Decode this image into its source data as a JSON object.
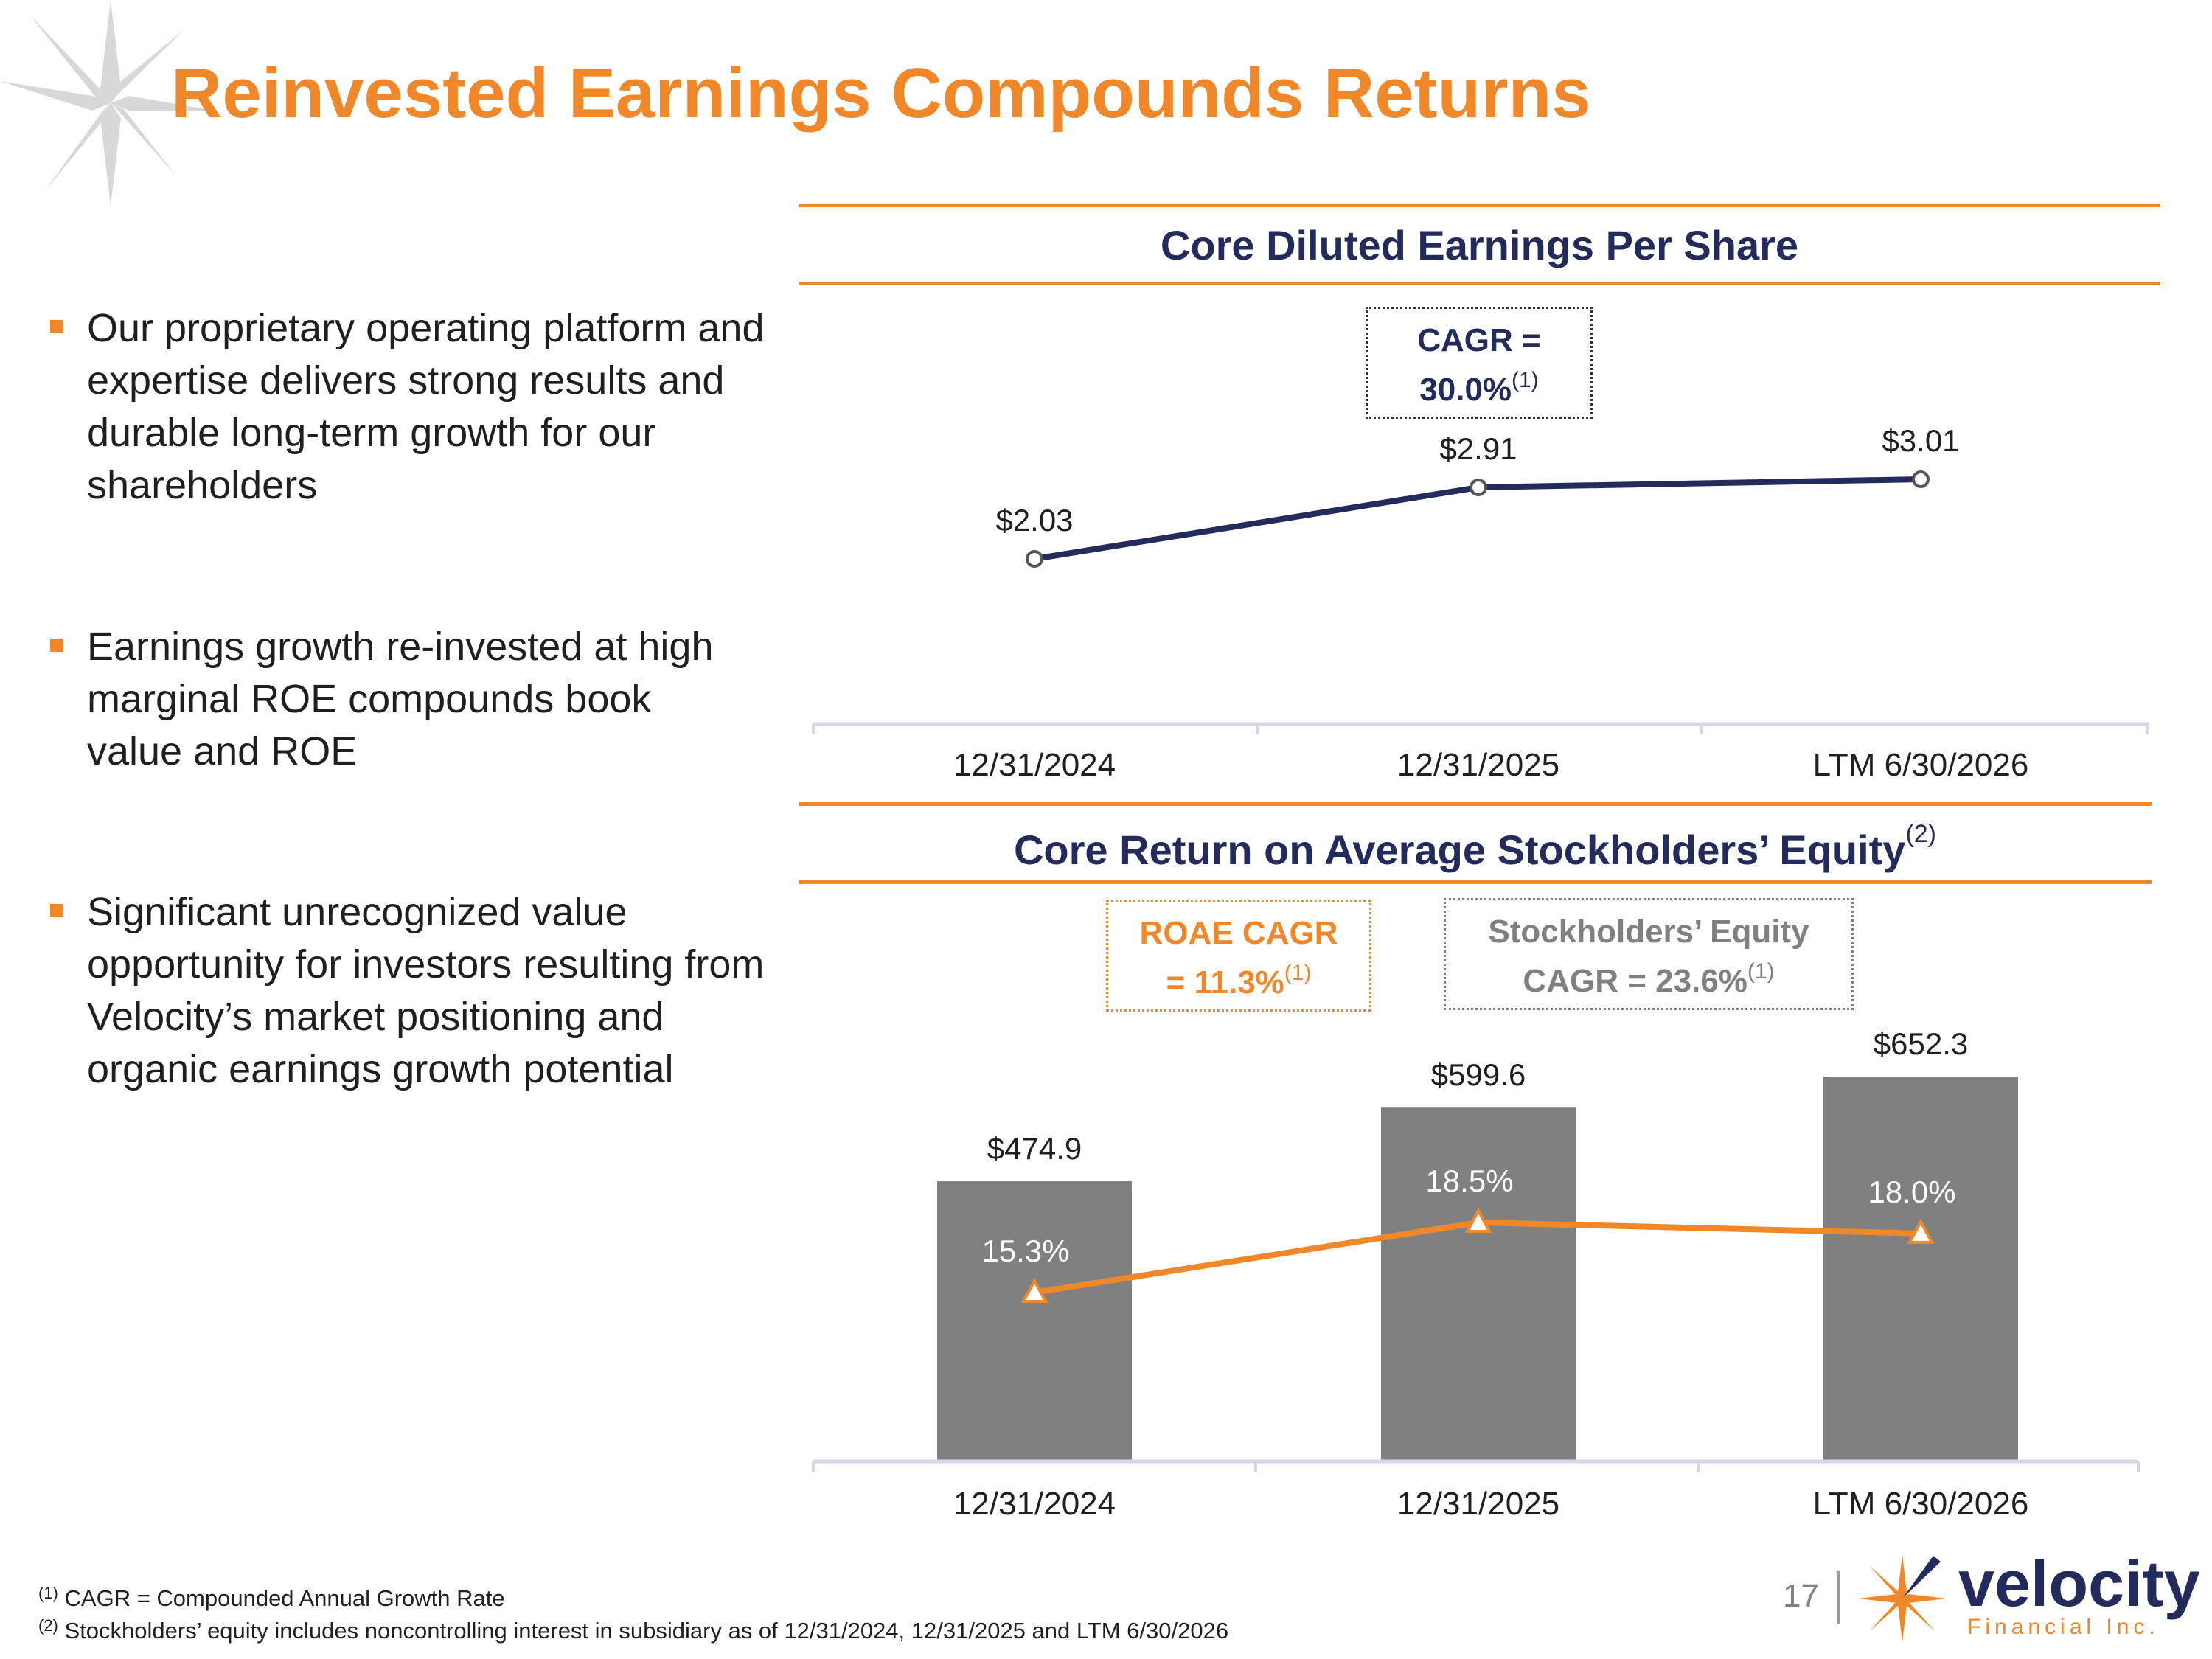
{
  "title": "Reinvested Earnings Compounds Returns",
  "bullets": [
    {
      "text": "Our proprietary operating platform and expertise delivers strong results and durable long-term growth for our shareholders"
    },
    {
      "text": "Earnings growth re-invested at high marginal ROE compounds book value and ROE"
    },
    {
      "text": "Significant unrecognized value opportunity for investors resulting from Velocity’s market positioning and organic earnings growth potential"
    }
  ],
  "eps_section": {
    "title": "Core Diluted Earnings Per Share",
    "cagr_label": "CAGR =",
    "cagr_value": "30.0%",
    "cagr_note": "(1)"
  },
  "roae_section": {
    "title": "Core Return on Average Stockholders’ Equity",
    "title_note": "(2)",
    "roae_cagr_label": "ROAE CAGR",
    "roae_cagr_value": "= 11.3%",
    "roae_cagr_note": "(1)",
    "equity_cagr_label": "Stockholders’ Equity",
    "equity_cagr_value": "CAGR = 23.6%",
    "equity_cagr_note": "(1)"
  },
  "chart_data": [
    {
      "type": "line",
      "title": "Core Diluted Earnings Per Share",
      "categories": [
        "12/31/2024",
        "12/31/2025",
        "LTM 6/30/2026"
      ],
      "series": [
        {
          "values": [
            2.03,
            2.91,
            3.01
          ],
          "labels": [
            "$2.03",
            "$2.91",
            "$3.01"
          ],
          "color": "#232a5c"
        }
      ]
    },
    {
      "type": "bar",
      "title": "Core Return on Average Stockholders’ Equity",
      "categories": [
        "12/31/2024",
        "12/31/2025",
        "LTM 6/30/2026"
      ],
      "series": [
        {
          "values": [
            474.9,
            599.6,
            652.3
          ],
          "labels": [
            "$474.9",
            "$599.6",
            "$652.3"
          ],
          "color": "#808080"
        },
        {
          "type": "line",
          "values": [
            15.3,
            18.5,
            18.0
          ],
          "labels": [
            "15.3%",
            "18.5%",
            "18.0%"
          ],
          "color": "#f0882a"
        }
      ]
    }
  ],
  "footnotes": [
    {
      "mark": "(1)",
      "text": "CAGR = Compounded Annual Growth Rate"
    },
    {
      "mark": "(2)",
      "text": "Stockholders’ equity includes noncontrolling interest in subsidiary as of 12/31/2024, 12/31/2025 and LTM 6/30/2026"
    }
  ],
  "page_number": "17",
  "logo": {
    "name": "velocity",
    "sub": "Financial Inc."
  },
  "colors": {
    "accent": "#f0882a",
    "navy": "#232a5c",
    "bar": "#808080"
  }
}
